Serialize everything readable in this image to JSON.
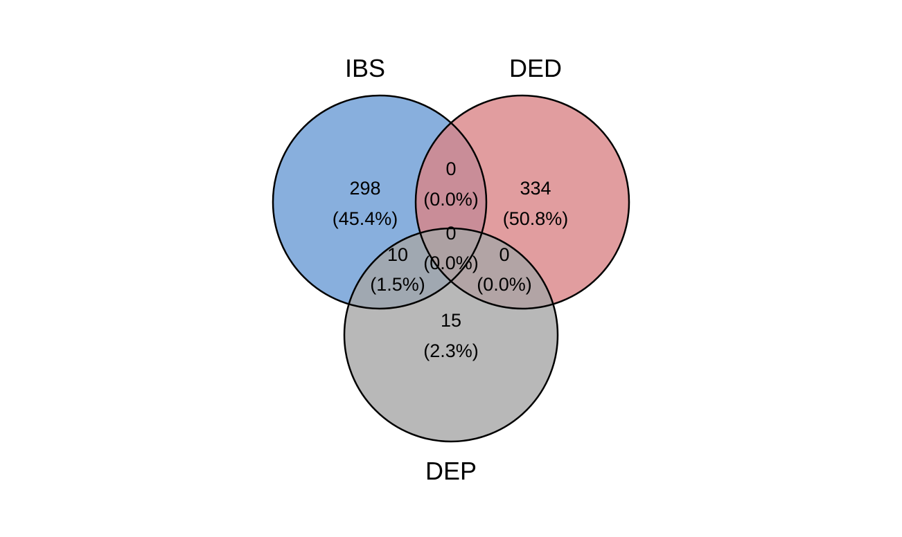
{
  "sets": [
    {
      "id": "ibs",
      "label": "IBS",
      "color": "#6A9BD5",
      "opacity": 0.8
    },
    {
      "id": "ded",
      "label": "DED",
      "color": "#D98587",
      "opacity": 0.8
    },
    {
      "id": "dep",
      "label": "DEP",
      "color": "#A6A6A6",
      "opacity": 0.8
    }
  ],
  "regions": {
    "ibs_only": {
      "count": "298",
      "percent": "(45.4%)"
    },
    "ded_only": {
      "count": "334",
      "percent": "(50.8%)"
    },
    "dep_only": {
      "count": "15",
      "percent": "(2.3%)"
    },
    "ibs_ded": {
      "count": "0",
      "percent": "(0.0%)"
    },
    "ibs_dep": {
      "count": "10",
      "percent": "(1.5%)"
    },
    "ded_dep": {
      "count": "0",
      "percent": "(0.0%)"
    },
    "ibs_ded_dep": {
      "count": "0",
      "percent": "(0.0%)"
    }
  },
  "outline_color": "#000000"
}
